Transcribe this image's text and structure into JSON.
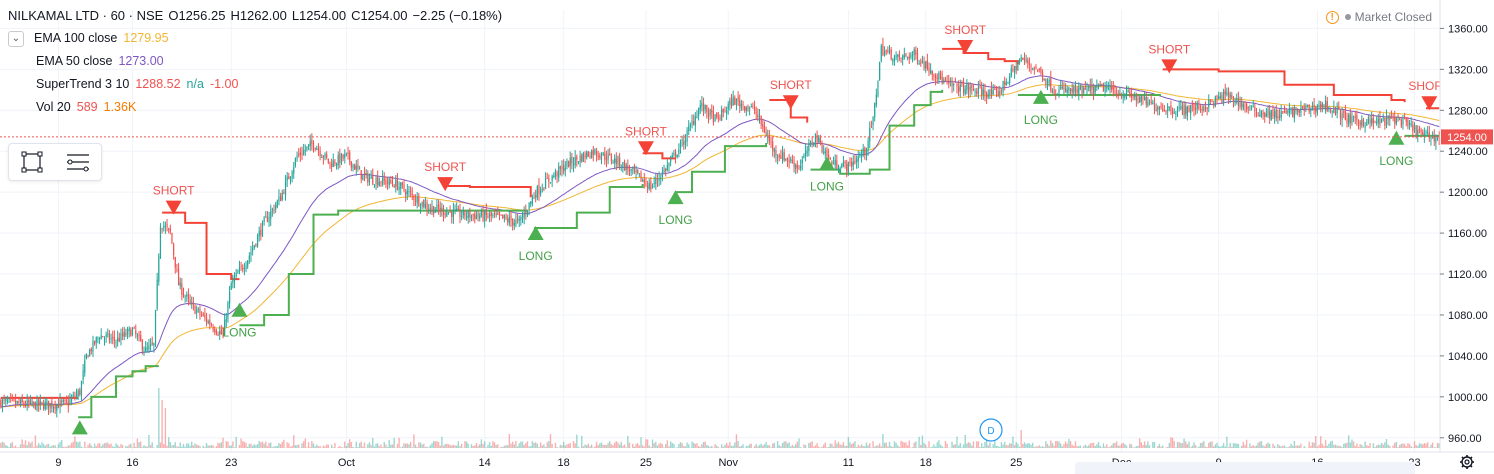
{
  "header": {
    "symbol": "NILKAMAL LTD · 60 · NSE",
    "open": "O1256.25",
    "high": "H1262.00",
    "low": "L1254.00",
    "close": "C1254.00",
    "change": "−2.25 (−0.18%)",
    "market_status": "Market Closed"
  },
  "indicators": {
    "ema100": {
      "label": "EMA 100 close",
      "value": "1279.95",
      "color": "#f2b632"
    },
    "ema50": {
      "label": "EMA 50 close",
      "value": "1273.00",
      "color": "#7e57c2"
    },
    "supertrend": {
      "label": "SuperTrend 3 10",
      "value": "1288.52",
      "extra1": "n/a",
      "extra2": "-1.00",
      "color": "#ef5350"
    },
    "volume": {
      "label": "Vol 20",
      "value": "589",
      "ma": "1.36K"
    }
  },
  "colors": {
    "up": "#26a69a",
    "down": "#ef5350",
    "trend_up": "#4caf50",
    "trend_down": "#f44336",
    "ema100": "#f2b632",
    "ema50": "#7e57c2",
    "price_line": "#ef5350",
    "grid": "#f0f3fa"
  },
  "icons": {
    "collapse": "chevron-down-icon",
    "rectangle": "rectangle-tool-icon",
    "lines": "lines-tool-icon",
    "settings": "gear-icon",
    "dividend": "dividend-marker-icon",
    "warning": "warning-icon"
  },
  "chart_data": {
    "type": "candlestick",
    "y_ticks": [
      960,
      1000,
      1040,
      1080,
      1120,
      1160,
      1200,
      1240,
      1280,
      1320,
      1360
    ],
    "ylim": [
      950,
      1378
    ],
    "x_ticks": [
      {
        "label": "9",
        "i": 35
      },
      {
        "label": "16",
        "i": 80
      },
      {
        "label": "23",
        "i": 140
      },
      {
        "label": "Oct",
        "i": 210
      },
      {
        "label": "14",
        "i": 294
      },
      {
        "label": "18",
        "i": 342
      },
      {
        "label": "25",
        "i": 392
      },
      {
        "label": "Nov",
        "i": 442
      },
      {
        "label": "11",
        "i": 515
      },
      {
        "label": "18",
        "i": 562
      },
      {
        "label": "25",
        "i": 617
      },
      {
        "label": "Dec",
        "i": 681
      },
      {
        "label": "9",
        "i": 740
      },
      {
        "label": "16",
        "i": 800
      },
      {
        "label": "23",
        "i": 859
      }
    ],
    "n_bars": 875,
    "last_price": "1254.00",
    "price_anchors": [
      [
        0,
        995
      ],
      [
        20,
        992
      ],
      [
        40,
        993
      ],
      [
        48,
        1005
      ],
      [
        52,
        1040
      ],
      [
        60,
        1060
      ],
      [
        70,
        1055
      ],
      [
        80,
        1065
      ],
      [
        88,
        1045
      ],
      [
        93,
        1050
      ],
      [
        97,
        1170
      ],
      [
        103,
        1160
      ],
      [
        108,
        1110
      ],
      [
        115,
        1090
      ],
      [
        125,
        1075
      ],
      [
        135,
        1060
      ],
      [
        140,
        1110
      ],
      [
        150,
        1135
      ],
      [
        160,
        1170
      ],
      [
        170,
        1195
      ],
      [
        180,
        1235
      ],
      [
        190,
        1248
      ],
      [
        200,
        1228
      ],
      [
        210,
        1235
      ],
      [
        220,
        1215
      ],
      [
        240,
        1208
      ],
      [
        260,
        1185
      ],
      [
        280,
        1178
      ],
      [
        300,
        1176
      ],
      [
        315,
        1170
      ],
      [
        325,
        1200
      ],
      [
        335,
        1215
      ],
      [
        345,
        1228
      ],
      [
        360,
        1240
      ],
      [
        375,
        1230
      ],
      [
        385,
        1218
      ],
      [
        395,
        1205
      ],
      [
        405,
        1225
      ],
      [
        415,
        1250
      ],
      [
        425,
        1285
      ],
      [
        435,
        1270
      ],
      [
        445,
        1290
      ],
      [
        458,
        1280
      ],
      [
        470,
        1240
      ],
      [
        485,
        1225
      ],
      [
        495,
        1255
      ],
      [
        505,
        1228
      ],
      [
        515,
        1225
      ],
      [
        525,
        1240
      ],
      [
        530,
        1270
      ],
      [
        535,
        1340
      ],
      [
        545,
        1330
      ],
      [
        555,
        1335
      ],
      [
        565,
        1320
      ],
      [
        575,
        1305
      ],
      [
        590,
        1300
      ],
      [
        605,
        1295
      ],
      [
        620,
        1330
      ],
      [
        630,
        1320
      ],
      [
        640,
        1300
      ],
      [
        655,
        1298
      ],
      [
        670,
        1302
      ],
      [
        685,
        1295
      ],
      [
        700,
        1285
      ],
      [
        715,
        1280
      ],
      [
        730,
        1283
      ],
      [
        745,
        1295
      ],
      [
        760,
        1280
      ],
      [
        775,
        1275
      ],
      [
        790,
        1280
      ],
      [
        805,
        1285
      ],
      [
        820,
        1270
      ],
      [
        835,
        1268
      ],
      [
        848,
        1272
      ],
      [
        858,
        1262
      ],
      [
        865,
        1255
      ],
      [
        874,
        1254
      ]
    ],
    "volume_spikes": [
      {
        "i": 96,
        "v": 60,
        "dir": "up"
      },
      {
        "i": 98,
        "v": 48,
        "dir": "down"
      },
      {
        "i": 100,
        "v": 40,
        "dir": "down"
      },
      {
        "i": 536,
        "v": 14,
        "dir": "up"
      },
      {
        "i": 620,
        "v": 18,
        "dir": "down"
      },
      {
        "i": 799,
        "v": 12,
        "dir": "down"
      },
      {
        "i": 842,
        "v": 9,
        "dir": "up"
      }
    ],
    "supertrend_segments": [
      {
        "trend": "down",
        "points": [
          [
            0,
            999
          ],
          [
            47,
            999
          ]
        ]
      },
      {
        "trend": "up",
        "points": [
          [
            47,
            980
          ],
          [
            55,
            1000
          ],
          [
            70,
            1020
          ],
          [
            80,
            1025
          ],
          [
            88,
            1030
          ],
          [
            96,
            1030
          ]
        ]
      },
      {
        "trend": "down",
        "points": [
          [
            98,
            1180
          ],
          [
            112,
            1170
          ],
          [
            125,
            1120
          ],
          [
            140,
            1115
          ],
          [
            145,
            1115
          ]
        ]
      },
      {
        "trend": "up",
        "points": [
          [
            145,
            1070
          ],
          [
            160,
            1080
          ],
          [
            175,
            1120
          ],
          [
            190,
            1178
          ],
          [
            205,
            1182
          ],
          [
            250,
            1182
          ],
          [
            320,
            1182
          ]
        ]
      },
      {
        "trend": "down",
        "points": [
          [
            270,
            1206
          ],
          [
            285,
            1205
          ],
          [
            310,
            1205
          ],
          [
            322,
            1195
          ]
        ]
      },
      {
        "trend": "up",
        "points": [
          [
            324,
            1165
          ],
          [
            350,
            1180
          ],
          [
            370,
            1205
          ],
          [
            390,
            1208
          ]
        ]
      },
      {
        "trend": "down",
        "points": [
          [
            390,
            1238
          ],
          [
            402,
            1233
          ],
          [
            410,
            1233
          ]
        ]
      },
      {
        "trend": "up",
        "points": [
          [
            410,
            1200
          ],
          [
            420,
            1220
          ],
          [
            440,
            1245
          ],
          [
            465,
            1248
          ]
        ]
      },
      {
        "trend": "down",
        "points": [
          [
            467,
            1290
          ],
          [
            480,
            1273
          ],
          [
            490,
            1268
          ]
        ]
      },
      {
        "trend": "up",
        "points": [
          [
            492,
            1222
          ],
          [
            510,
            1218
          ],
          [
            528,
            1222
          ],
          [
            540,
            1265
          ],
          [
            555,
            1285
          ],
          [
            565,
            1298
          ],
          [
            572,
            1300
          ]
        ]
      },
      {
        "trend": "down",
        "points": [
          [
            572,
            1340
          ],
          [
            585,
            1336
          ],
          [
            600,
            1330
          ],
          [
            610,
            1328
          ],
          [
            618,
            1325
          ]
        ]
      },
      {
        "trend": "up",
        "points": [
          [
            618,
            1295
          ],
          [
            650,
            1295
          ],
          [
            690,
            1295
          ],
          [
            705,
            1295
          ]
        ]
      },
      {
        "trend": "down",
        "points": [
          [
            706,
            1320
          ],
          [
            740,
            1318
          ],
          [
            780,
            1305
          ],
          [
            810,
            1295
          ],
          [
            845,
            1290
          ],
          [
            853,
            1288
          ]
        ]
      },
      {
        "trend": "up",
        "points": [
          [
            853,
            1255
          ],
          [
            865,
            1255
          ],
          [
            874,
            1255
          ]
        ]
      },
      {
        "trend": "down",
        "points": [
          [
            866,
            1282
          ],
          [
            874,
            1282
          ]
        ]
      }
    ],
    "signals": [
      {
        "type": "long",
        "i": 48,
        "price": 975,
        "label": ""
      },
      {
        "type": "short",
        "i": 105,
        "price": 1180,
        "label": "SHORT"
      },
      {
        "type": "long",
        "i": 145,
        "price": 1090,
        "label": "LONG"
      },
      {
        "type": "short",
        "i": 270,
        "price": 1203,
        "label": "SHORT"
      },
      {
        "type": "long",
        "i": 325,
        "price": 1165,
        "label": "LONG"
      },
      {
        "type": "short",
        "i": 392,
        "price": 1238,
        "label": "SHORT"
      },
      {
        "type": "long",
        "i": 410,
        "price": 1200,
        "label": "LONG"
      },
      {
        "type": "short",
        "i": 480,
        "price": 1283,
        "label": "SHORT"
      },
      {
        "type": "long",
        "i": 502,
        "price": 1233,
        "label": "LONG"
      },
      {
        "type": "short",
        "i": 586,
        "price": 1337,
        "label": "SHORT"
      },
      {
        "type": "long",
        "i": 632,
        "price": 1298,
        "label": "LONG"
      },
      {
        "type": "short",
        "i": 710,
        "price": 1318,
        "label": "SHORT"
      },
      {
        "type": "long",
        "i": 848,
        "price": 1258,
        "label": "LONG"
      },
      {
        "type": "short",
        "i": 868,
        "price": 1282,
        "label": "SHORT"
      }
    ]
  }
}
